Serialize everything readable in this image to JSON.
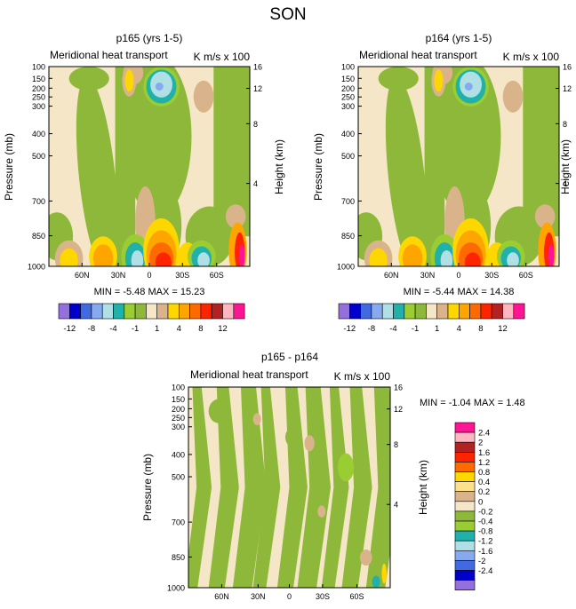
{
  "figure": {
    "title": "SON"
  },
  "chart_data": [
    {
      "type": "heatmap",
      "title": "p165 (yrs 1-5)",
      "left_label": "Meridional heat transport",
      "units_label": "K m/s x 100",
      "xlabel": "",
      "ylabel": "Pressure (mb)",
      "y2label": "Height (km)",
      "x_ticks": [
        "60N",
        "30N",
        "0",
        "30S",
        "60S"
      ],
      "y_ticks": [
        "100",
        "150",
        "200",
        "250",
        "300",
        "400",
        "500",
        "700",
        "850",
        "1000"
      ],
      "y2_ticks": [
        "16",
        "12",
        "8",
        "4"
      ],
      "min": -5.48,
      "max": 15.23,
      "minmax_text": "MIN = -5.48  MAX = 15.23",
      "colorbar_labels": [
        "-12",
        "-8",
        "-4",
        "-1",
        "1",
        "4",
        "8",
        "12"
      ],
      "colors": [
        "#9370db",
        "#0000cd",
        "#4169e1",
        "#87a9f0",
        "#b0e0e6",
        "#20b2aa",
        "#9acd32",
        "#8db83a",
        "#f5e6c8",
        "#d9b48a",
        "#ffd700",
        "#ffa500",
        "#ff6a00",
        "#ff2400",
        "#b22222",
        "#ffb6c1",
        "#ff1493"
      ]
    },
    {
      "type": "heatmap",
      "title": "p164 (yrs 1-5)",
      "left_label": "Meridional heat transport",
      "units_label": "K m/s x 100",
      "xlabel": "",
      "ylabel": "Pressure (mb)",
      "y2label": "Height (km)",
      "x_ticks": [
        "60N",
        "30N",
        "0",
        "30S",
        "60S"
      ],
      "y_ticks": [
        "100",
        "150",
        "200",
        "250",
        "300",
        "400",
        "500",
        "700",
        "850",
        "1000"
      ],
      "y2_ticks": [
        "16",
        "12",
        "8",
        "4"
      ],
      "min": -5.44,
      "max": 14.38,
      "minmax_text": "MIN = -5.44  MAX = 14.38",
      "colorbar_labels": [
        "-12",
        "-8",
        "-4",
        "-1",
        "1",
        "4",
        "8",
        "12"
      ]
    },
    {
      "type": "heatmap",
      "title": "p165 - p164",
      "left_label": "Meridional heat transport",
      "units_label": "K m/s x 100",
      "xlabel": "",
      "ylabel": "Pressure (mb)",
      "y2label": "Height (km)",
      "x_ticks": [
        "60N",
        "30N",
        "0",
        "30S",
        "60S"
      ],
      "y_ticks": [
        "100",
        "150",
        "200",
        "250",
        "300",
        "400",
        "500",
        "700",
        "850",
        "1000"
      ],
      "y2_ticks": [
        "16",
        "12",
        "8",
        "4"
      ],
      "min": -1.04,
      "max": 1.48,
      "minmax_text": "MIN =  -1.04  MAX =  1.48",
      "colorbar_labels": [
        "2.4",
        "2",
        "1.6",
        "1.2",
        "0.8",
        "0.4",
        "0.2",
        "0",
        "-0.2",
        "-0.4",
        "-0.8",
        "-1.2",
        "-1.6",
        "-2",
        "-2.4"
      ],
      "colors": [
        "#ff1493",
        "#ffb6c1",
        "#b22222",
        "#ff2400",
        "#ff6a00",
        "#ffd700",
        "#ffe08a",
        "#d9b48a",
        "#f5e6c8",
        "#8db83a",
        "#9acd32",
        "#20b2aa",
        "#b0e0e6",
        "#87a9f0",
        "#4169e1",
        "#0000cd",
        "#9370db"
      ]
    }
  ]
}
